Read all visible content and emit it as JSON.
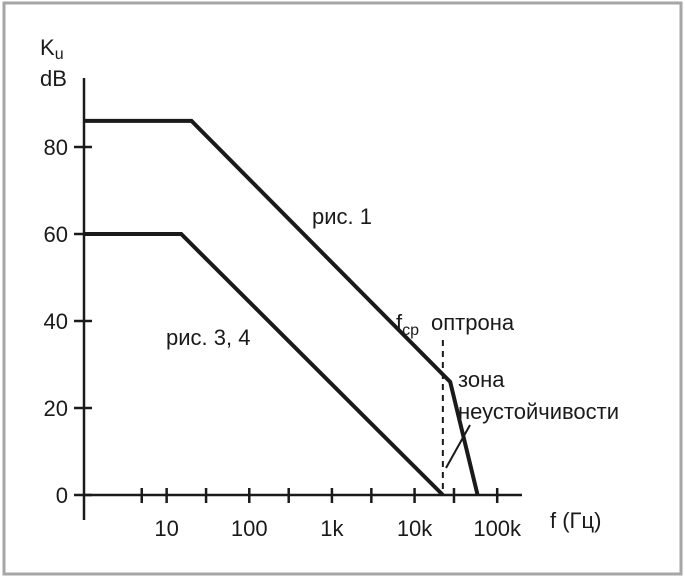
{
  "chart_data": {
    "type": "line",
    "title": "",
    "ylabel_main": "K",
    "ylabel_sub": "u",
    "ylabel_unit": "dB",
    "xlabel": "f (Гц)",
    "x_scale": "log",
    "xlim": [
      1,
      200000
    ],
    "ylim": [
      0,
      100
    ],
    "y_ticks": [
      0,
      20,
      40,
      60,
      80
    ],
    "y_tick_labels": [
      "0",
      "20",
      "40",
      "60",
      "80"
    ],
    "x_ticks": [
      10,
      100,
      1000,
      10000,
      100000
    ],
    "x_tick_labels": [
      "10",
      "100",
      "1k",
      "10k",
      "100k"
    ],
    "x_minor_ticks": [
      5,
      30,
      300,
      3000,
      30000
    ],
    "grid": false,
    "series": [
      {
        "name": "рис. 1",
        "x": [
          1,
          20,
          27000,
          58000
        ],
        "y": [
          86,
          86,
          26,
          0
        ]
      },
      {
        "name": "рис. 3, 4",
        "x": [
          1,
          15,
          22000
        ],
        "y": [
          60,
          60,
          0
        ]
      }
    ],
    "annotations": {
      "vline_x": 22000,
      "vline_label_main": "f",
      "vline_label_sub": "ср",
      "vline_label_rest": "оптрона",
      "zone_label_line1": "зона",
      "zone_label_line2": "неустойчивости"
    },
    "colors": {
      "frame": "#a6a6a6",
      "ink": "#1a1a1a"
    }
  }
}
